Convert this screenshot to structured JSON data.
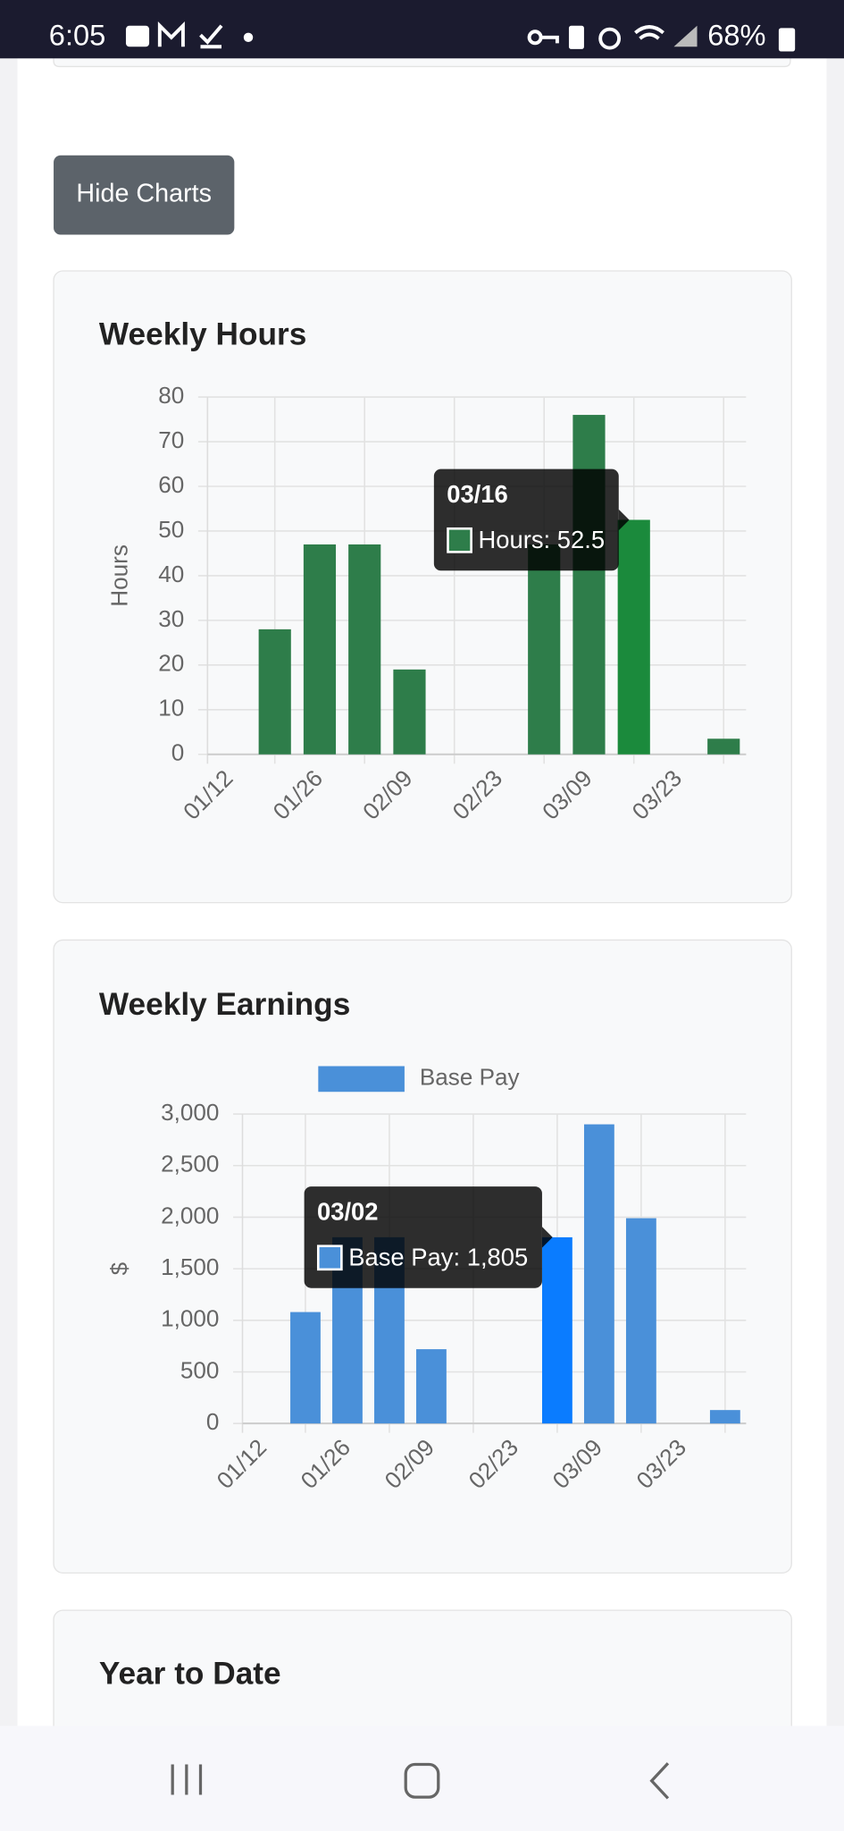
{
  "status_bar": {
    "time": "6:05",
    "battery": "68%"
  },
  "button": "Hide Charts",
  "chart_data": [
    {
      "type": "bar",
      "title": "Weekly Hours",
      "y_label": "Hours",
      "categories": [
        "01/12",
        null,
        "01/26",
        null,
        "02/09",
        null,
        "02/23",
        null,
        "03/09",
        null,
        "03/23",
        null
      ],
      "values": [
        0,
        28,
        47,
        47,
        19,
        0,
        0,
        47,
        76,
        52.5,
        0,
        3.5
      ],
      "color": "#2e7d4a",
      "active_color": "#1b8a3c",
      "active_index": 9,
      "ylim": [
        0,
        80
      ],
      "yticks": [
        0,
        10,
        20,
        30,
        40,
        50,
        60,
        70,
        80
      ],
      "grid": true,
      "tooltip": {
        "title": "03/16",
        "label": "Hours: 52.5"
      }
    },
    {
      "type": "bar",
      "title": "Weekly Earnings",
      "y_label": "$",
      "categories": [
        "01/12",
        null,
        "01/26",
        null,
        "02/09",
        null,
        "02/23",
        null,
        "03/09",
        null,
        "03/23",
        null
      ],
      "series": [
        {
          "name": "Base Pay",
          "color": "#4a90d9",
          "values": [
            0,
            1080,
            1805,
            1805,
            720,
            0,
            0,
            1805,
            2900,
            1990,
            0,
            130
          ]
        }
      ],
      "active_color": "#0a7cff",
      "active_index": 7,
      "legend": "top",
      "ylim": [
        0,
        3000
      ],
      "yticks": [
        0,
        500,
        {
          "value": 1000,
          "label": "1,000"
        },
        {
          "value": 1500,
          "label": "1,500"
        },
        {
          "value": 2000,
          "label": "2,000"
        },
        {
          "value": 2500,
          "label": "2,500"
        },
        {
          "value": 3000,
          "label": "3,000"
        }
      ],
      "grid": true,
      "tooltip": {
        "title": "03/02",
        "label": "Base Pay: 1,805"
      }
    }
  ],
  "year_to_date": {
    "title": "Year to Date"
  }
}
